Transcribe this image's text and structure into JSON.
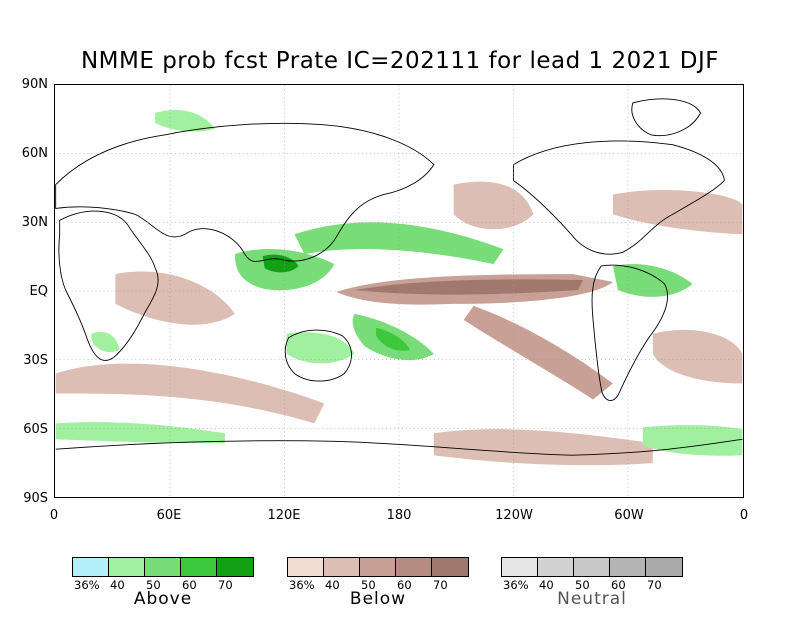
{
  "title": "NMME prob fcst Prate IC=202111 for lead 1 2021 DJF",
  "map": {
    "projection": "equirectangular",
    "lon_range": [
      0,
      360
    ],
    "lat_range": [
      -90,
      90
    ],
    "y_labels": [
      "90N",
      "60N",
      "30N",
      "EQ",
      "30S",
      "60S",
      "90S"
    ],
    "x_labels": [
      "0",
      "60E",
      "120E",
      "180",
      "120W",
      "60W",
      "0"
    ],
    "gridlines": "dotted"
  },
  "legends": [
    {
      "name": "Above",
      "ticks": [
        "36%",
        "40",
        "50",
        "60",
        "70"
      ],
      "colors": [
        "#b4f0fa",
        "#a0f0a0",
        "#78dc78",
        "#3cc83c",
        "#14a014"
      ]
    },
    {
      "name": "Below",
      "ticks": [
        "36%",
        "40",
        "50",
        "60",
        "70"
      ],
      "colors": [
        "#f0dcd2",
        "#dcbeb4",
        "#c8a096",
        "#b48c82",
        "#a0786e"
      ]
    },
    {
      "name": "Neutral",
      "ticks": [
        "36%",
        "40",
        "50",
        "60",
        "70"
      ],
      "colors": [
        "#e6e6e6",
        "#d2d2d2",
        "#c8c8c8",
        "#b4b4b4",
        "#aaaaaa"
      ]
    }
  ]
}
